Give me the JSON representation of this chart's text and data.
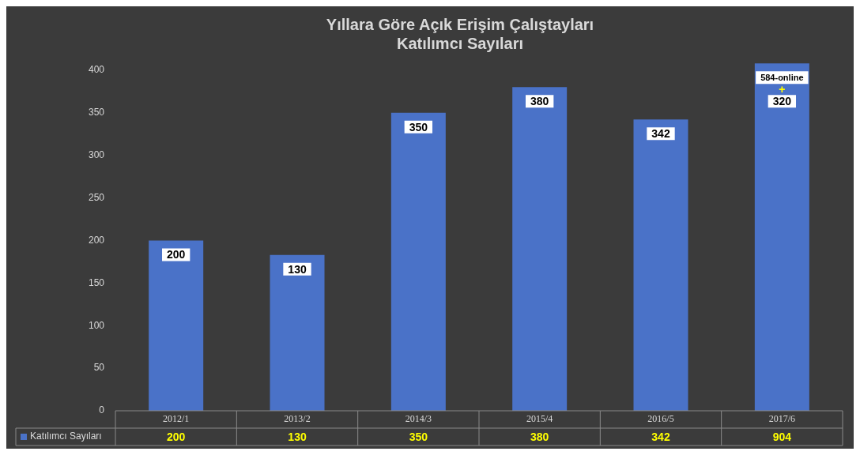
{
  "chart_data": {
    "type": "bar",
    "title": "Yıllara Göre Açık Erişim Çalıştayları\nKatılımcı Sayıları",
    "categories": [
      "2012/1",
      "2013/2",
      "2014/3",
      "2015/4",
      "2016/5",
      "2017/6"
    ],
    "series": [
      {
        "name": "Katılımcı Sayıları",
        "color": "#4a72c8",
        "values": [
          200,
          183,
          350,
          380,
          342,
          408
        ]
      }
    ],
    "ylim": [
      0,
      410
    ],
    "yticks": [
      0,
      50,
      100,
      150,
      200,
      250,
      300,
      350,
      400
    ],
    "grid": false,
    "legend": "bottom",
    "annotations": [
      {
        "text": "200",
        "x": "2012/1",
        "y": 200
      },
      {
        "text": "130",
        "x": "2013/2",
        "y": 183
      },
      {
        "text": "350",
        "x": "2014/3",
        "y": 350
      },
      {
        "text": "380",
        "x": "2015/4",
        "y": 380
      },
      {
        "text": "342",
        "x": "2016/5",
        "y": 342
      },
      {
        "text": "584-online\n+\n320",
        "x": "2017/6",
        "y": 408
      },
      "200",
      "130",
      "350",
      "380",
      "342",
      "904"
    ]
  }
}
